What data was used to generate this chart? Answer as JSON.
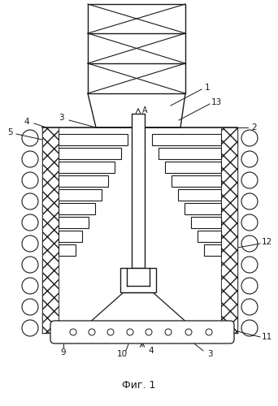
{
  "bg_color": "#ffffff",
  "line_color": "#1a1a1a",
  "title": "Фиг. 1",
  "fig_width": 3.42,
  "fig_height": 5.0,
  "dpi": 100
}
